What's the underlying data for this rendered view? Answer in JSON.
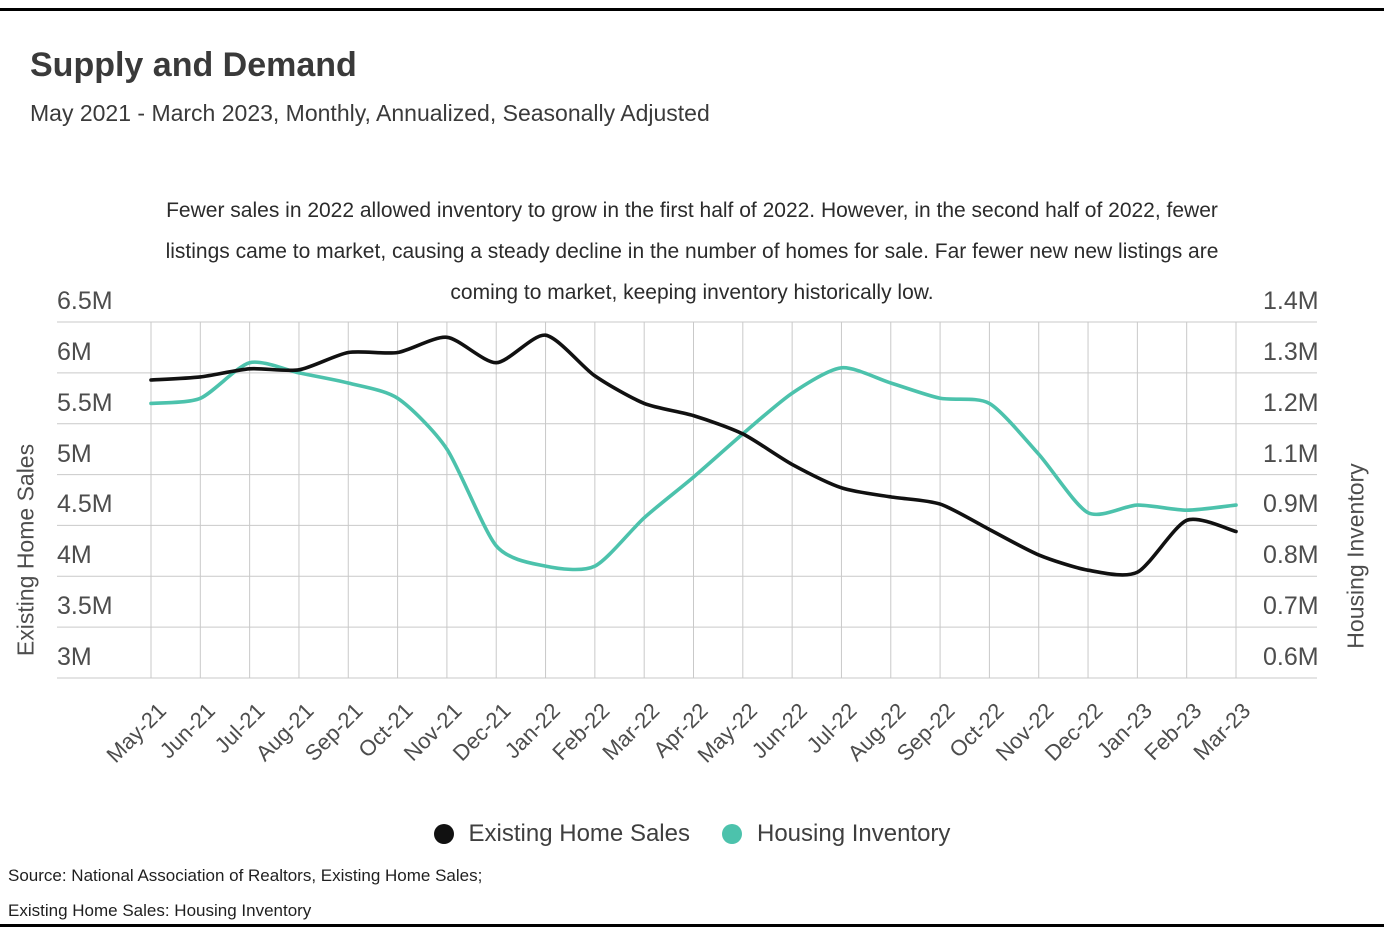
{
  "page": {
    "title": "Supply and Demand",
    "subtitle": "May 2021 - March 2023, Monthly, Annualized, Seasonally Adjusted"
  },
  "annotation": {
    "lines": [
      "Fewer sales in 2022 allowed inventory to grow in the first half of 2022. However, in the second half of 2022, fewer",
      "listings came to market, causing a steady decline in the number of homes for sale. Far fewer new new listings are",
      "coming to market, keeping inventory historically low."
    ]
  },
  "chart_data": {
    "type": "line",
    "title": "Supply and Demand",
    "subtitle": "May 2021 - March 2023, Monthly, Annualized, Seasonally Adjusted",
    "grid": true,
    "legend_position": "bottom",
    "categories": [
      "May-21",
      "Jun-21",
      "Jul-21",
      "Aug-21",
      "Sep-21",
      "Oct-21",
      "Nov-21",
      "Dec-21",
      "Jan-22",
      "Feb-22",
      "Mar-22",
      "Apr-22",
      "May-22",
      "Jun-22",
      "Jul-22",
      "Aug-22",
      "Sep-22",
      "Oct-22",
      "Nov-22",
      "Dec-22",
      "Jan-23",
      "Feb-23",
      "Mar-23"
    ],
    "series": [
      {
        "name": "Existing Home Sales",
        "axis": "left",
        "unit": "millions",
        "color": "#111111",
        "values": [
          5.93,
          5.96,
          6.04,
          6.03,
          6.2,
          6.2,
          6.35,
          6.1,
          6.37,
          5.97,
          5.7,
          5.58,
          5.4,
          5.1,
          4.87,
          4.78,
          4.71,
          4.46,
          4.21,
          4.06,
          4.04,
          4.55,
          4.44
        ]
      },
      {
        "name": "Housing Inventory",
        "axis": "right",
        "unit": "millions",
        "color": "#4cc2ac",
        "values": [
          1.24,
          1.25,
          1.32,
          1.3,
          1.28,
          1.25,
          1.15,
          0.86,
          0.82,
          0.82,
          0.93,
          1.09,
          1.18,
          1.26,
          1.31,
          1.28,
          1.25,
          1.24,
          1.14,
          0.95,
          0.98,
          0.96,
          0.98
        ]
      }
    ],
    "left_axis": {
      "title": "Existing Home Sales",
      "tick_labels": [
        "6.5M",
        "6M",
        "5.5M",
        "5M",
        "4.5M",
        "4M",
        "3.5M",
        "3M"
      ],
      "tick_values": [
        6.5,
        6.0,
        5.5,
        5.0,
        4.5,
        4.0,
        3.5,
        3.0
      ]
    },
    "right_axis": {
      "title": "Housing Inventory",
      "tick_labels": [
        "1.4M",
        "1.3M",
        "1.2M",
        "1.1M",
        "0.9M",
        "0.8M",
        "0.7M",
        "0.6M"
      ],
      "tick_values": [
        1.4,
        1.3,
        1.2,
        1.1,
        0.9,
        0.8,
        0.7,
        0.6
      ]
    }
  },
  "legend": {
    "items": [
      {
        "label": "Existing Home Sales",
        "color": "#111111"
      },
      {
        "label": "Housing Inventory",
        "color": "#4cc2ac"
      }
    ]
  },
  "source": {
    "lines": [
      "Source:  National Association of Realtors, Existing Home Sales;",
      "Existing Home Sales: Housing Inventory"
    ]
  },
  "colors": {
    "gridline": "#c9c9c9",
    "border": "#000000",
    "tick_text": "#4d4d4d"
  }
}
